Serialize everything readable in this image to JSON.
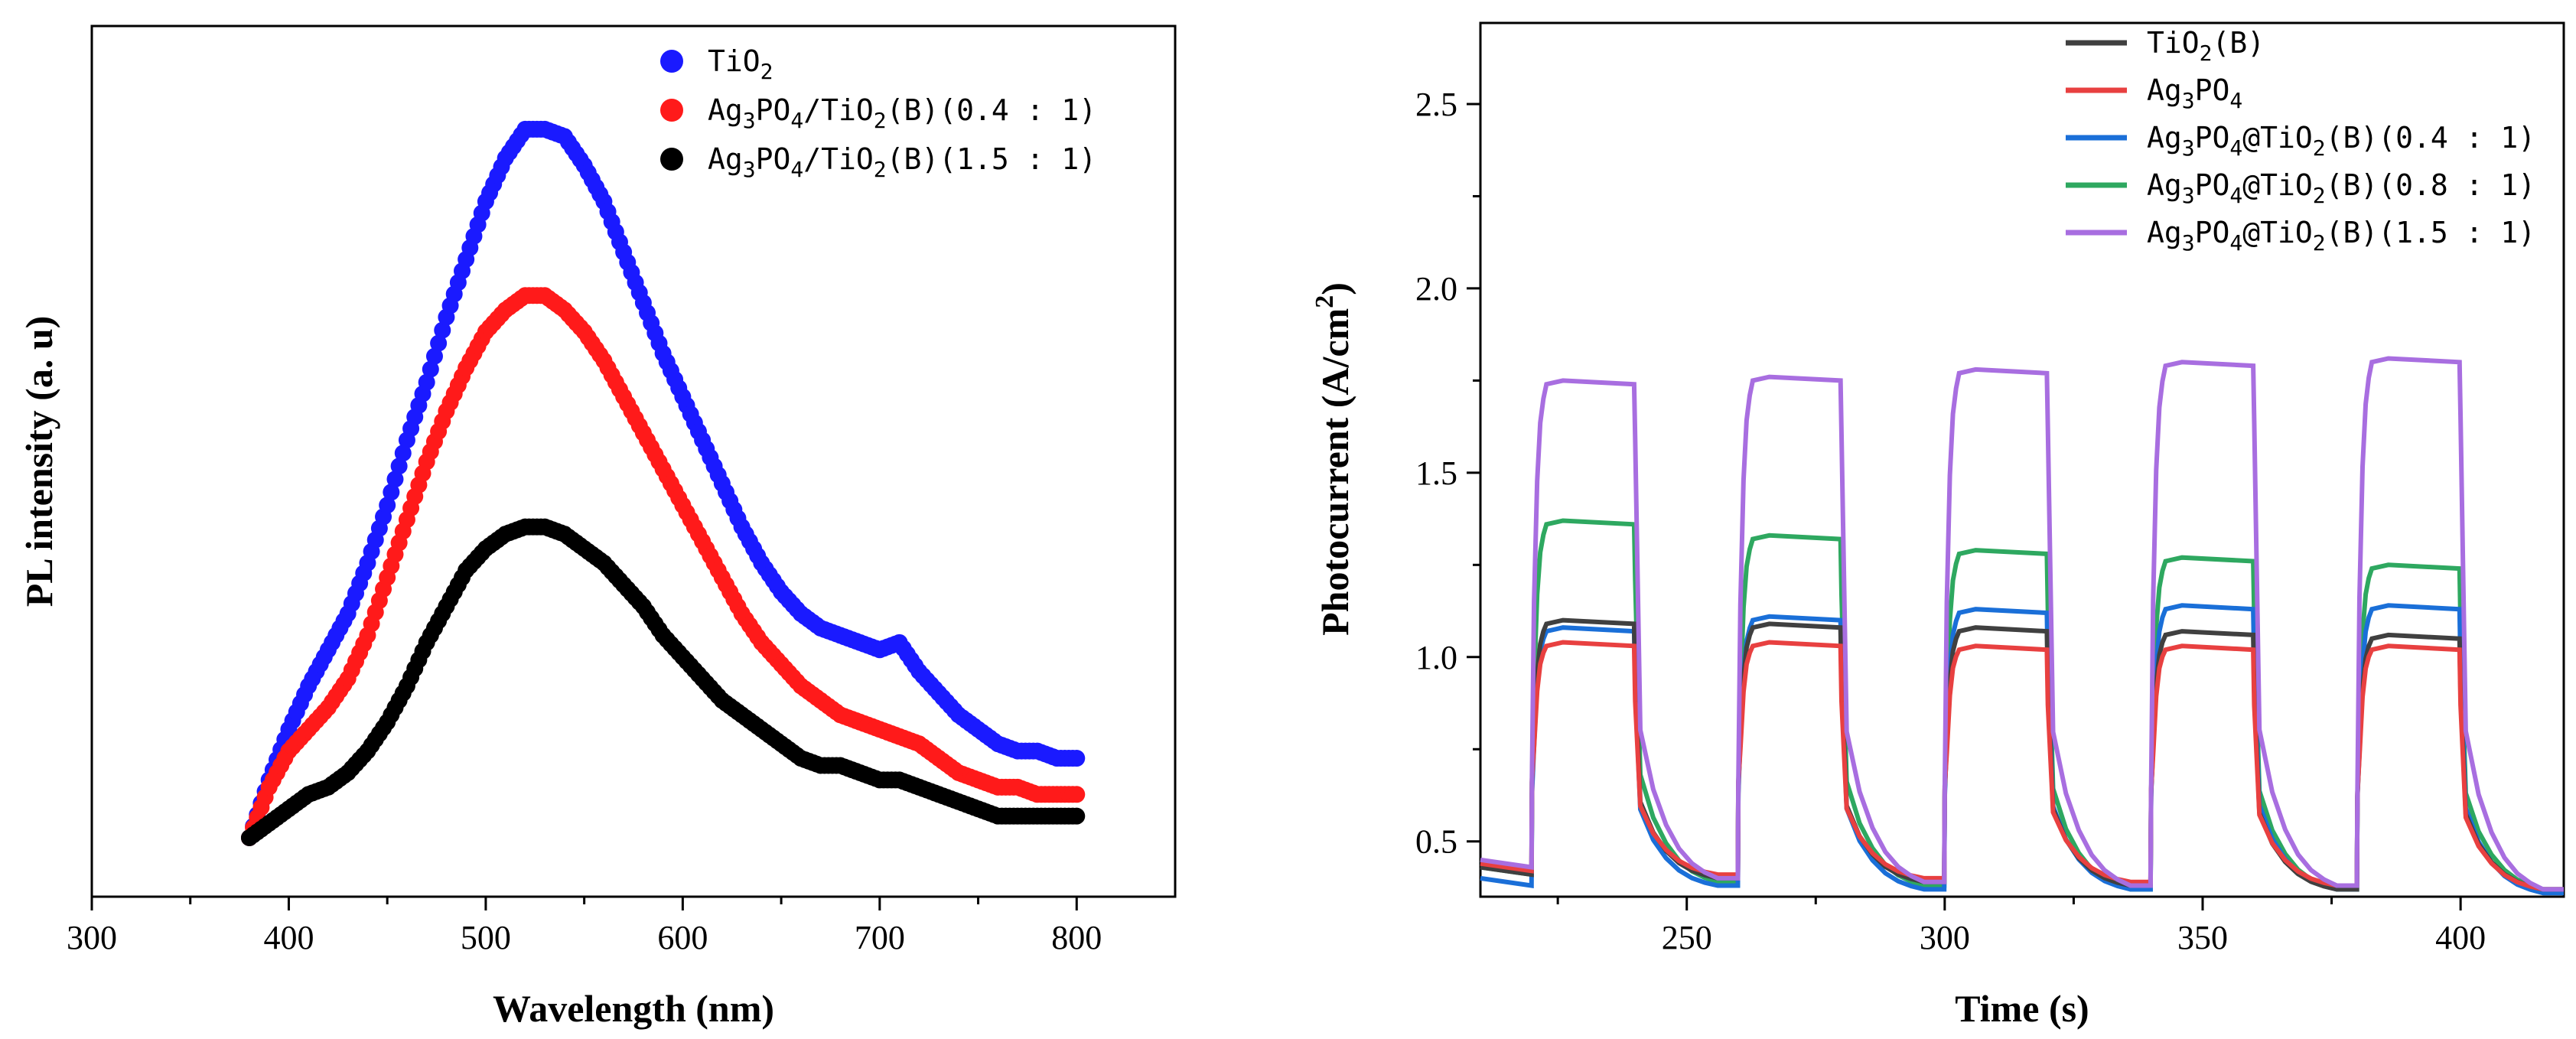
{
  "chart_data": [
    {
      "type": "scatter",
      "xlabel": "Wavelength (nm)",
      "ylabel": "PL intensity (a. u)",
      "xlim": [
        300,
        850
      ],
      "ylim": [
        0,
        1.1
      ],
      "y_ticks_labeled": false,
      "x_ticks": [
        300,
        400,
        500,
        600,
        700,
        800
      ],
      "legend_position": "top-right",
      "series": [
        {
          "name": "TiO2",
          "legend": {
            "base": "TiO",
            "sub": "2",
            "rest": ""
          },
          "color": "#1a1aff",
          "x": [
            380,
            390,
            400,
            410,
            420,
            430,
            440,
            450,
            460,
            470,
            480,
            490,
            500,
            510,
            520,
            530,
            540,
            550,
            560,
            570,
            580,
            590,
            600,
            610,
            620,
            630,
            640,
            650,
            660,
            670,
            680,
            690,
            700,
            710,
            720,
            730,
            740,
            750,
            760,
            770,
            780,
            790,
            800
          ],
          "y": [
            0.0,
            0.08,
            0.15,
            0.21,
            0.26,
            0.31,
            0.38,
            0.46,
            0.55,
            0.63,
            0.72,
            0.8,
            0.88,
            0.94,
            0.98,
            0.98,
            0.97,
            0.93,
            0.88,
            0.81,
            0.74,
            0.67,
            0.61,
            0.55,
            0.49,
            0.43,
            0.38,
            0.34,
            0.31,
            0.29,
            0.28,
            0.27,
            0.26,
            0.27,
            0.23,
            0.2,
            0.17,
            0.15,
            0.13,
            0.12,
            0.12,
            0.11,
            0.11
          ]
        },
        {
          "name": "Ag3PO4/TiO2(B)(0.4 : 1)",
          "legend": {
            "base": "Ag",
            "sub": "3",
            "rest": "PO",
            "sub2": "4",
            "rest2": "/TiO",
            "sub3": "2",
            "rest3": "(B)(0.4 : 1)"
          },
          "color": "#ff1a1a",
          "x": [
            380,
            390,
            400,
            410,
            420,
            430,
            440,
            450,
            460,
            470,
            480,
            490,
            500,
            510,
            520,
            530,
            540,
            550,
            560,
            570,
            580,
            590,
            600,
            610,
            620,
            630,
            640,
            650,
            660,
            670,
            680,
            690,
            700,
            710,
            720,
            730,
            740,
            750,
            760,
            770,
            780,
            790,
            800
          ],
          "y": [
            0.0,
            0.07,
            0.12,
            0.15,
            0.18,
            0.22,
            0.28,
            0.36,
            0.44,
            0.52,
            0.59,
            0.65,
            0.7,
            0.73,
            0.75,
            0.75,
            0.73,
            0.7,
            0.66,
            0.61,
            0.56,
            0.51,
            0.46,
            0.41,
            0.36,
            0.31,
            0.27,
            0.24,
            0.21,
            0.19,
            0.17,
            0.16,
            0.15,
            0.14,
            0.13,
            0.11,
            0.09,
            0.08,
            0.07,
            0.07,
            0.06,
            0.06,
            0.06
          ]
        },
        {
          "name": "Ag3PO4/TiO2(B)(1.5 : 1)",
          "legend": {
            "base": "Ag",
            "sub": "3",
            "rest": "PO",
            "sub2": "4",
            "rest2": "/TiO",
            "sub3": "2",
            "rest3": "(B)(1.5 : 1)"
          },
          "color": "#000000",
          "x": [
            380,
            390,
            400,
            410,
            420,
            430,
            440,
            450,
            460,
            470,
            480,
            490,
            500,
            510,
            520,
            530,
            540,
            550,
            560,
            570,
            580,
            590,
            600,
            610,
            620,
            630,
            640,
            650,
            660,
            670,
            680,
            690,
            700,
            710,
            720,
            730,
            740,
            750,
            760,
            770,
            780,
            790,
            800
          ],
          "y": [
            0.0,
            0.02,
            0.04,
            0.06,
            0.07,
            0.09,
            0.12,
            0.16,
            0.21,
            0.27,
            0.32,
            0.37,
            0.4,
            0.42,
            0.43,
            0.43,
            0.42,
            0.4,
            0.38,
            0.35,
            0.32,
            0.28,
            0.25,
            0.22,
            0.19,
            0.17,
            0.15,
            0.13,
            0.11,
            0.1,
            0.1,
            0.09,
            0.08,
            0.08,
            0.07,
            0.06,
            0.05,
            0.04,
            0.03,
            0.03,
            0.03,
            0.03,
            0.03
          ]
        }
      ]
    },
    {
      "type": "line",
      "xlabel": "Time (s)",
      "ylabel": "Photocurrent (A/cm",
      "ylabel_sup": "2",
      "ylabel_end": ")",
      "xlim": [
        210,
        420
      ],
      "ylim": [
        0.35,
        2.72
      ],
      "x_ticks": [
        250,
        300,
        350,
        400
      ],
      "y_ticks": [
        0.5,
        1.0,
        1.5,
        2.0,
        2.5
      ],
      "y_tick_labels": [
        "0.5",
        "1.0",
        "1.5",
        "2.0",
        "2.5"
      ],
      "legend_position": "top-right",
      "light_on": [
        220,
        260,
        300,
        340,
        380
      ],
      "light_off": [
        240,
        280,
        320,
        360,
        400
      ],
      "series": [
        {
          "name": "TiO2(B)",
          "legend": {
            "base": "TiO",
            "sub": "2",
            "rest": "(B)"
          },
          "color": "#404040",
          "dark": [
            0.41,
            0.4,
            0.39,
            0.38,
            0.37,
            0.37
          ],
          "on": [
            1.09,
            1.08,
            1.07,
            1.06,
            1.05
          ]
        },
        {
          "name": "Ag3PO4",
          "legend": {
            "base": "Ag",
            "sub": "3",
            "rest": "PO",
            "sub2": "4",
            "rest2": ""
          },
          "color": "#e84040",
          "dark": [
            0.42,
            0.41,
            0.4,
            0.39,
            0.38,
            0.37
          ],
          "on": [
            1.03,
            1.03,
            1.02,
            1.02,
            1.02
          ]
        },
        {
          "name": "Ag3PO4@TiO2(B)(0.4 : 1)",
          "legend": {
            "base": "Ag",
            "sub": "3",
            "rest": "PO",
            "sub2": "4",
            "rest2": "@TiO",
            "sub3": "2",
            "rest3": "(B)(0.4 : 1)"
          },
          "color": "#1a6fd8",
          "dark": [
            0.38,
            0.38,
            0.37,
            0.37,
            0.37,
            0.36
          ],
          "on": [
            1.07,
            1.1,
            1.12,
            1.13,
            1.13
          ]
        },
        {
          "name": "Ag3PO4@TiO2(B)(0.8 : 1)",
          "legend": {
            "base": "Ag",
            "sub": "3",
            "rest": "PO",
            "sub2": "4",
            "rest2": "@TiO",
            "sub3": "2",
            "rest3": "(B)(0.8 : 1)"
          },
          "color": "#2ea860",
          "dark": [
            0.41,
            0.39,
            0.38,
            0.37,
            0.37,
            0.37
          ],
          "on": [
            1.36,
            1.32,
            1.28,
            1.26,
            1.24
          ]
        },
        {
          "name": "Ag3PO4@TiO2(B)(1.5 : 1)",
          "legend": {
            "base": "Ag",
            "sub": "3",
            "rest": "PO",
            "sub2": "4",
            "rest2": "@TiO",
            "sub3": "2",
            "rest3": "(B)(1.5 : 1)"
          },
          "color": "#a86ee0",
          "dark": [
            0.43,
            0.4,
            0.39,
            0.38,
            0.38,
            0.37
          ],
          "on": [
            1.74,
            1.75,
            1.77,
            1.79,
            1.8
          ]
        }
      ]
    }
  ]
}
